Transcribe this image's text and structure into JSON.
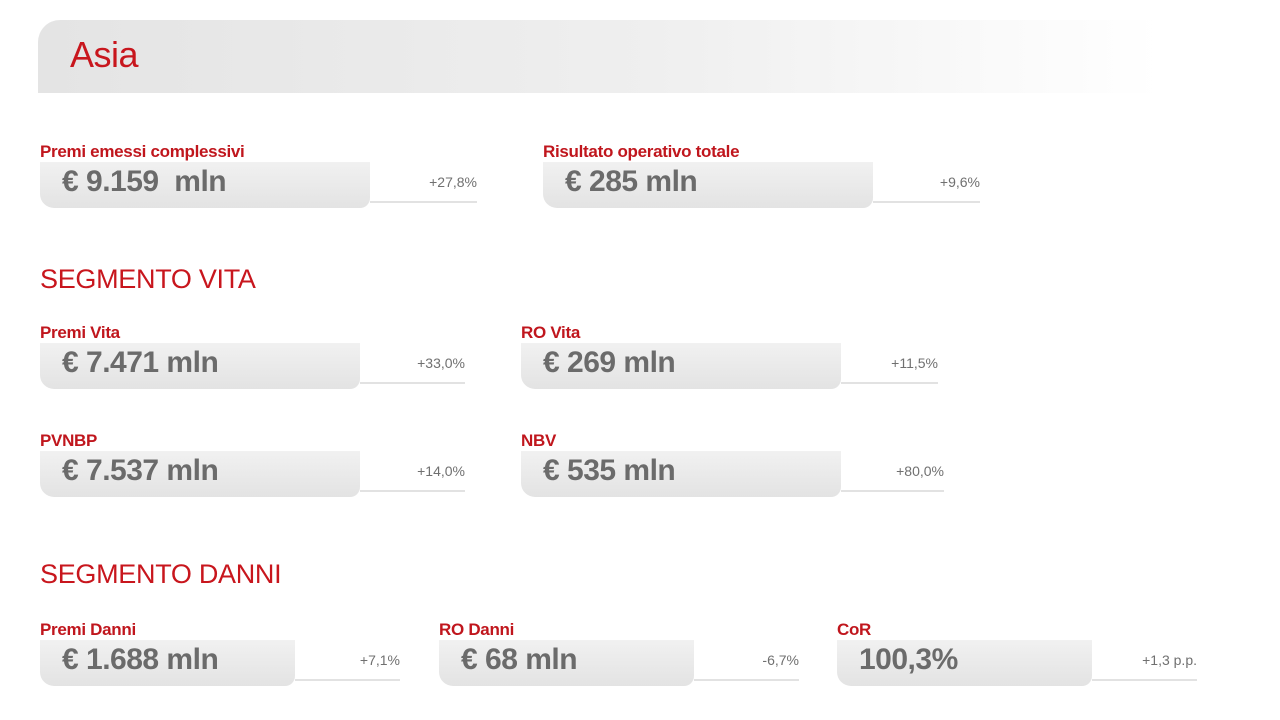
{
  "header": {
    "title": "Asia"
  },
  "top": {
    "items": [
      {
        "label": "Premi emessi complessivi",
        "value": "€ 9.159  mln",
        "change": "+27,8%"
      },
      {
        "label": "Risultato operativo totale",
        "value": "€ 285 mln",
        "change": "+9,6%"
      }
    ]
  },
  "sections": [
    {
      "title": "SEGMENTO VITA",
      "items": [
        {
          "label": "Premi Vita",
          "value": "€ 7.471 mln",
          "change": "+33,0%"
        },
        {
          "label": "RO Vita",
          "value": "€ 269 mln",
          "change": "+11,5%"
        },
        {
          "label": "PVNBP",
          "value": "€ 7.537 mln",
          "change": "+14,0%"
        },
        {
          "label": "NBV",
          "value": "€ 535 mln",
          "change": "+80,0%"
        }
      ]
    },
    {
      "title": "SEGMENTO DANNI",
      "items": [
        {
          "label": "Premi Danni",
          "value": "€ 1.688 mln",
          "change": "+7,1%"
        },
        {
          "label": "RO Danni",
          "value": "€ 68 mln",
          "change": "-6,7%"
        },
        {
          "label": "CoR",
          "value": "100,3%",
          "change": "+1,3 p.p."
        }
      ]
    }
  ]
}
